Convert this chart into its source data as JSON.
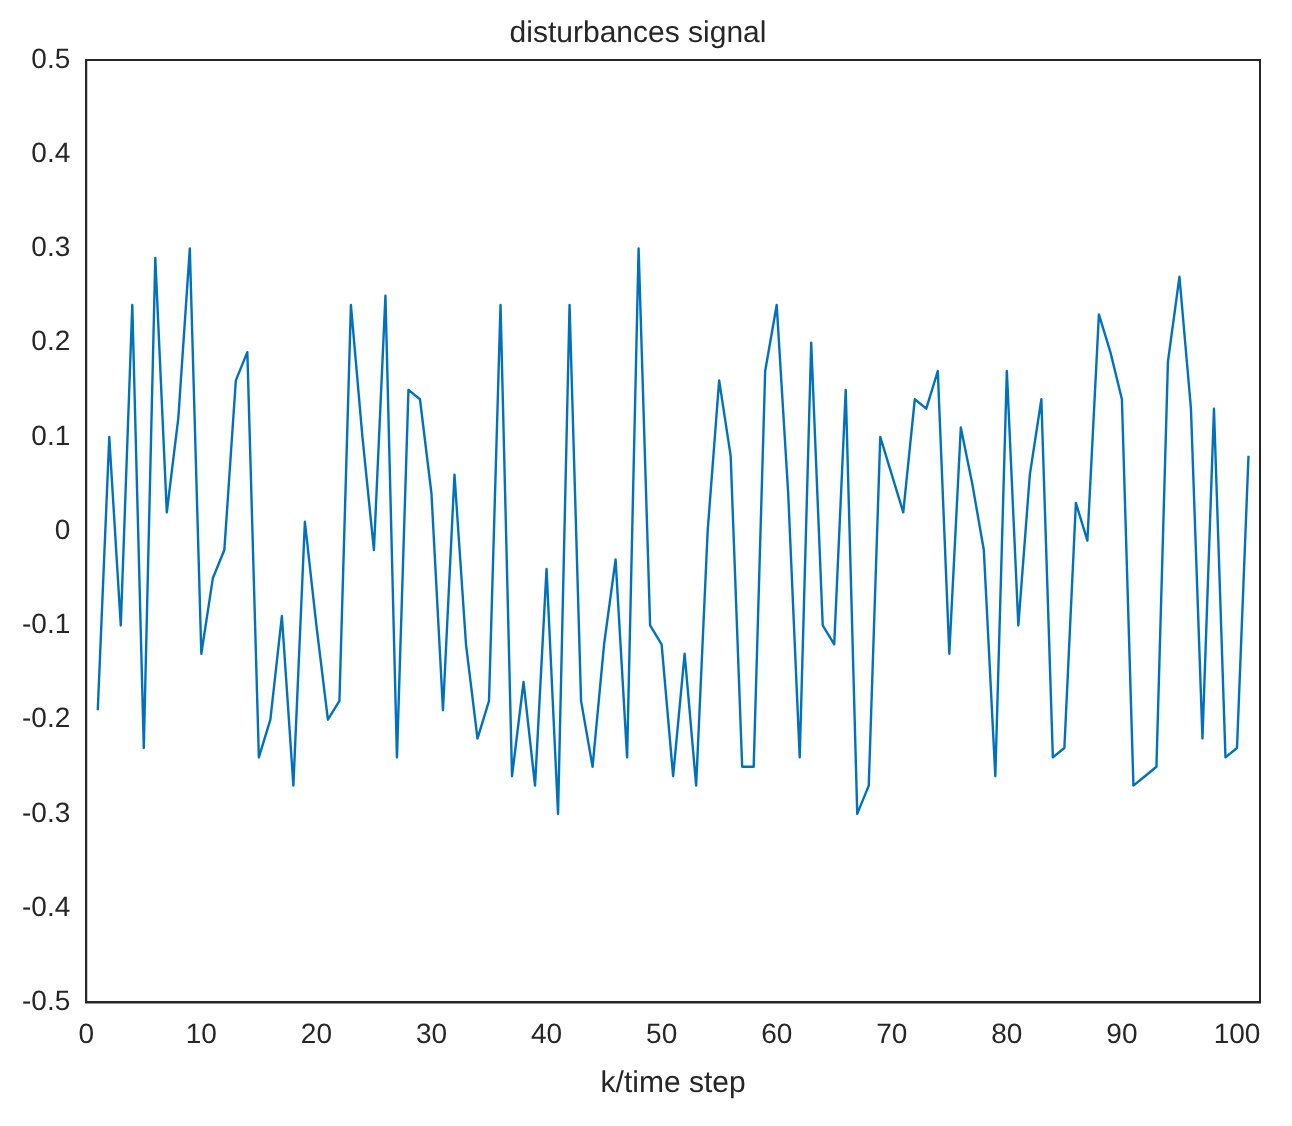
{
  "chart_data": {
    "type": "line",
    "title": "disturbances signal",
    "xlabel": "k/time step",
    "x": [
      1,
      2,
      3,
      4,
      5,
      6,
      7,
      8,
      9,
      10,
      11,
      12,
      13,
      14,
      15,
      16,
      17,
      18,
      19,
      20,
      21,
      22,
      23,
      24,
      25,
      26,
      27,
      28,
      29,
      30,
      31,
      32,
      33,
      34,
      35,
      36,
      37,
      38,
      39,
      40,
      41,
      42,
      43,
      44,
      45,
      46,
      47,
      48,
      49,
      50,
      51,
      52,
      53,
      54,
      55,
      56,
      57,
      58,
      59,
      60,
      61,
      62,
      63,
      64,
      65,
      66,
      67,
      68,
      69,
      70,
      71,
      72,
      73,
      74,
      75,
      76,
      77,
      78,
      79,
      80,
      81,
      82,
      83,
      84,
      85,
      86,
      87,
      88,
      89,
      90,
      91,
      92,
      93,
      94,
      95,
      96,
      97,
      98,
      99,
      100,
      101
    ],
    "series": [
      {
        "color": "#0072bd",
        "values": [
          -0.19,
          0.1,
          -0.1,
          0.24,
          -0.23,
          0.29,
          0.02,
          0.12,
          0.3,
          -0.13,
          -0.05,
          -0.02,
          0.16,
          0.19,
          -0.24,
          -0.2,
          -0.09,
          -0.27,
          0.01,
          -0.1,
          -0.2,
          -0.18,
          0.24,
          0.1,
          -0.02,
          0.25,
          -0.24,
          0.15,
          0.14,
          0.04,
          -0.19,
          0.06,
          -0.12,
          -0.22,
          -0.18,
          0.24,
          -0.26,
          -0.16,
          -0.27,
          -0.04,
          -0.3,
          0.24,
          -0.18,
          -0.25,
          -0.12,
          -0.03,
          -0.24,
          0.3,
          -0.1,
          -0.12,
          -0.26,
          -0.13,
          -0.27,
          0.0,
          0.16,
          0.08,
          -0.25,
          -0.25,
          0.17,
          0.24,
          0.04,
          -0.24,
          0.2,
          -0.1,
          -0.12,
          0.15,
          -0.3,
          -0.27,
          0.1,
          0.06,
          0.02,
          0.14,
          0.13,
          0.17,
          -0.13,
          0.11,
          0.05,
          -0.02,
          -0.26,
          0.17,
          -0.1,
          0.06,
          0.14,
          -0.24,
          -0.23,
          0.03,
          -0.01,
          0.23,
          0.19,
          0.14,
          -0.27,
          -0.26,
          -0.25,
          0.18,
          0.27,
          0.13,
          -0.22,
          0.13,
          -0.24,
          -0.23,
          0.08
        ]
      }
    ],
    "xlim": [
      0,
      102
    ],
    "xticks": [
      0,
      10,
      20,
      30,
      40,
      50,
      60,
      70,
      80,
      90,
      100
    ],
    "ylim": [
      -0.5,
      0.5
    ],
    "yticks": [
      -0.5,
      -0.4,
      -0.3,
      -0.2,
      -0.1,
      0,
      0.1,
      0.2,
      0.3,
      0.4,
      0.5
    ],
    "grid": false,
    "legend": false,
    "marker": "none",
    "line_style": "solid"
  }
}
